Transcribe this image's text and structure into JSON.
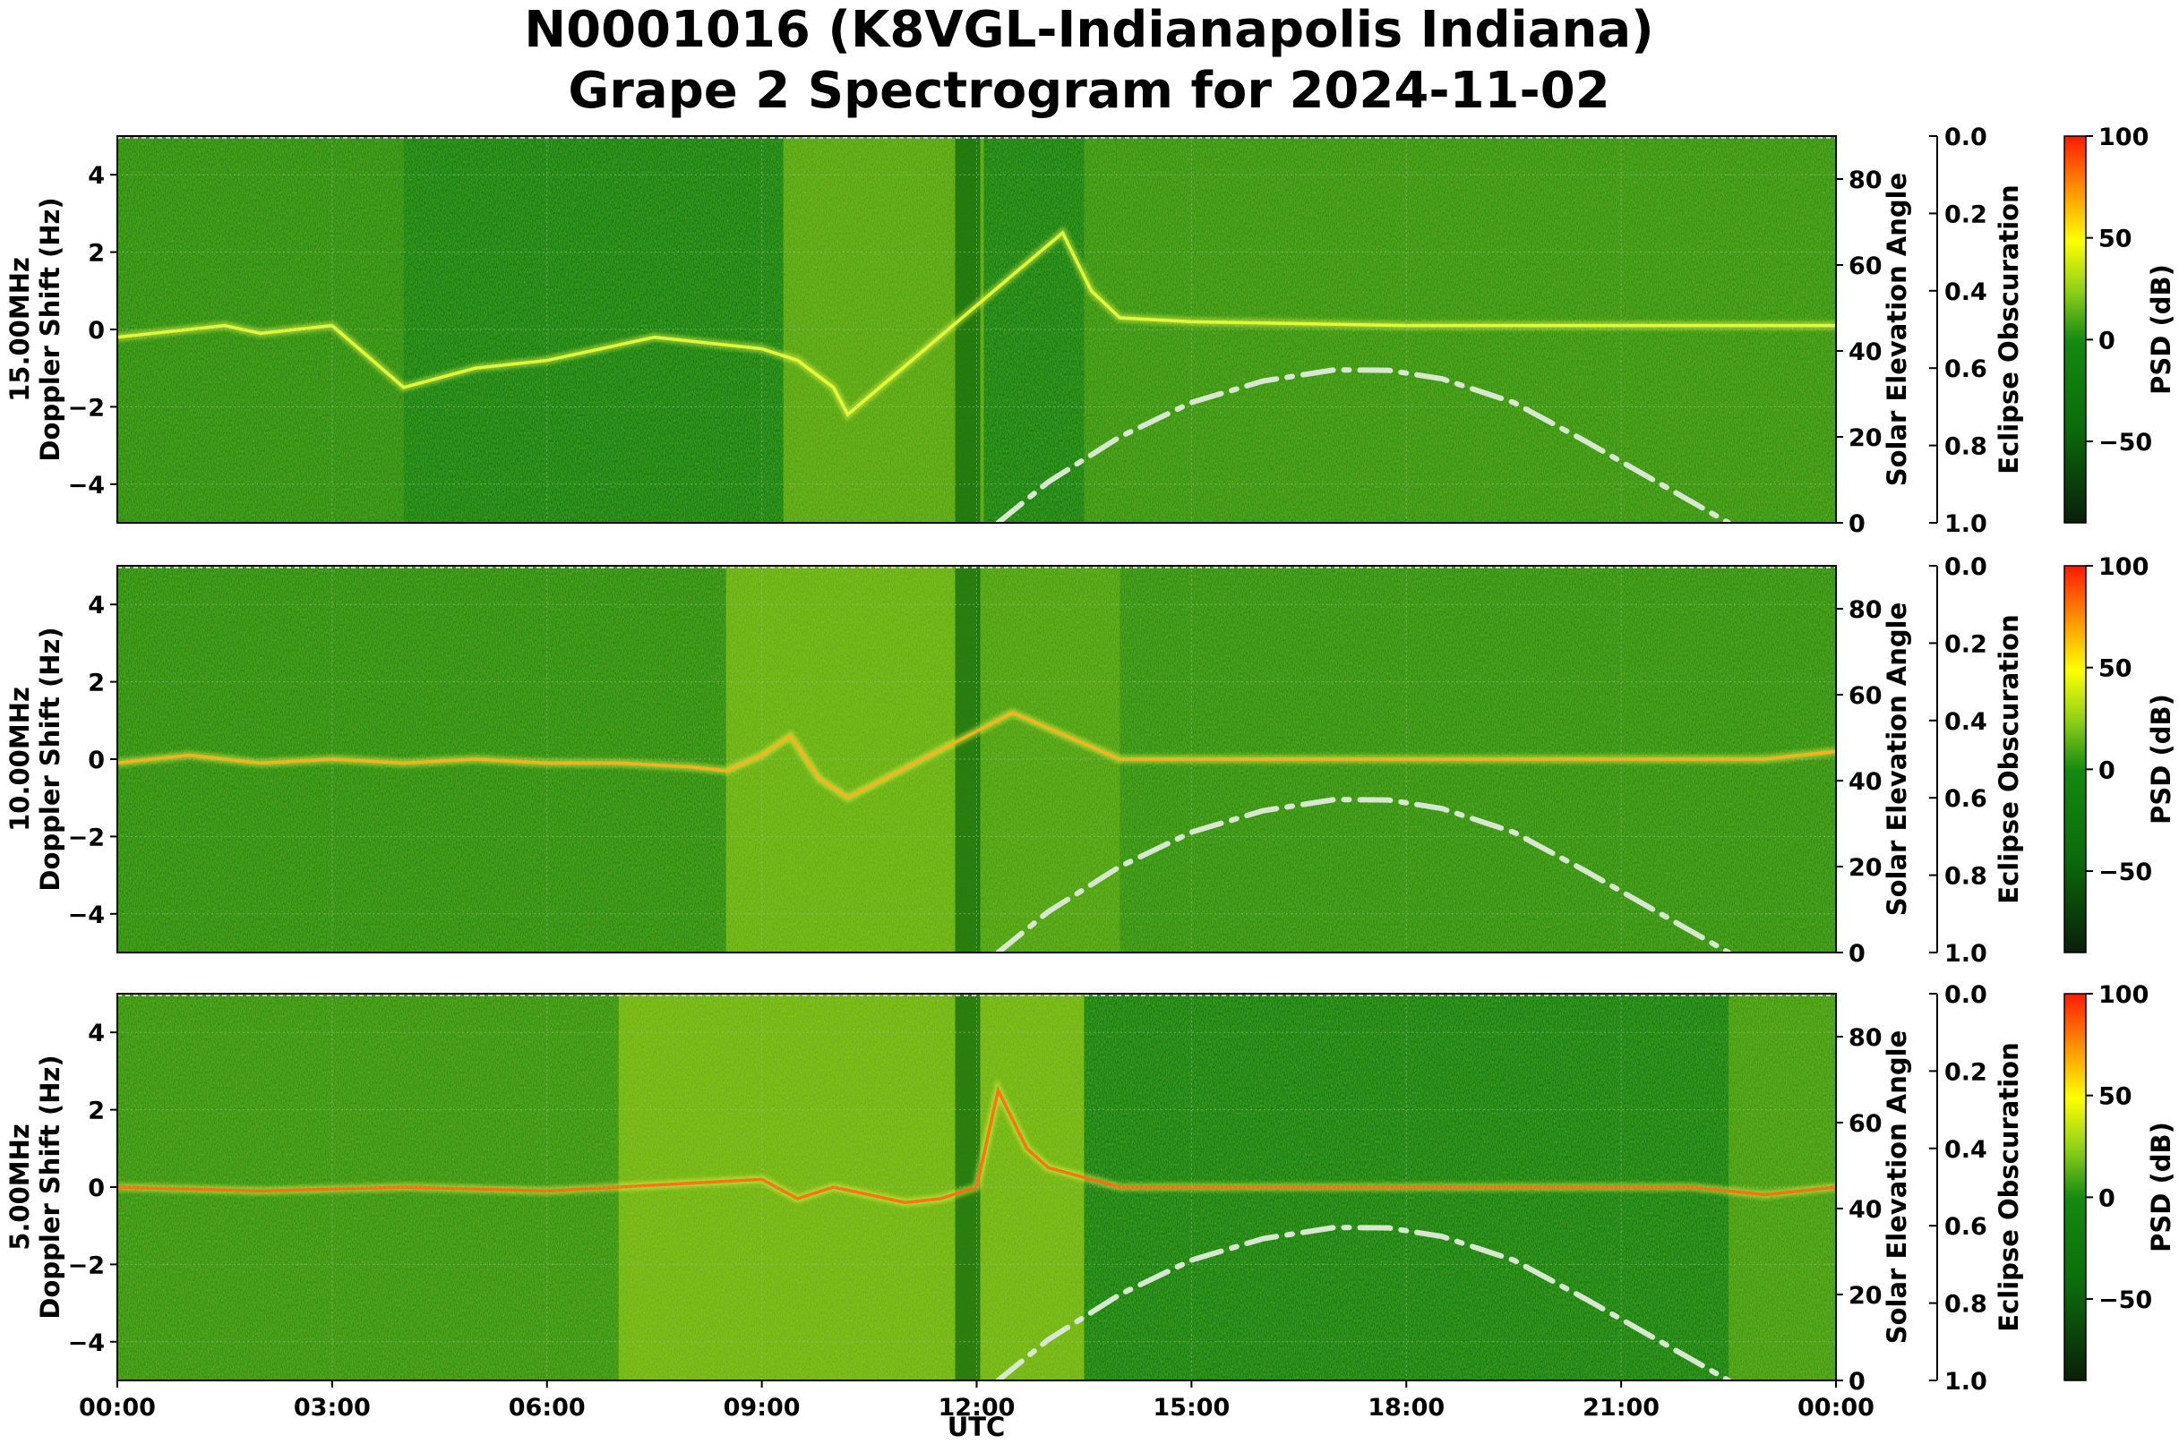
{
  "title_line1": "N0001016 (K8VGL-Indianapolis Indiana)",
  "title_line2": "Grape 2 Spectrogram for 2024-11-02",
  "chart_data": {
    "type": "heatmap",
    "xlabel": "UTC",
    "x_ticks": [
      "00:00",
      "03:00",
      "06:00",
      "09:00",
      "12:00",
      "15:00",
      "18:00",
      "21:00",
      "00:00"
    ],
    "xlim_hours": [
      0,
      24
    ],
    "ylim": [
      -5,
      5
    ],
    "y_ticks": [
      4,
      2,
      0,
      -2,
      -4
    ],
    "y2_label": "Solar Elevation Angle",
    "y2_ticks": [
      80,
      60,
      40,
      20,
      0
    ],
    "y2lim": [
      0,
      90
    ],
    "y3_label": "Eclipse Obscuration",
    "y3_ticks": [
      "0.0",
      "0.2",
      "0.4",
      "0.6",
      "0.8",
      "1.0"
    ],
    "colorbar_label": "PSD (dB)",
    "colorbar_ticks": [
      "100",
      "50",
      "0",
      "−50"
    ],
    "colorbar_range": [
      -90,
      100
    ],
    "colorbar_colors": [
      "#0a1f0a",
      "#0b6d0b",
      "#138a10",
      "#8fd01a",
      "#ffff00",
      "#ff8c00",
      "#ff1a00"
    ],
    "solar_elevation": {
      "style": "dash-dot",
      "color": "#d8e8d0",
      "hours": [
        12.3,
        13,
        14,
        15,
        16,
        17,
        17.75,
        18.5,
        19.5,
        20.5,
        21.5,
        22.5
      ],
      "degrees": [
        0,
        9.5,
        20,
        28,
        33,
        35.6,
        35.5,
        33.5,
        28,
        19,
        9.5,
        0
      ]
    },
    "panels": [
      {
        "name": "15.00MHz",
        "ylabel_line1": "15.00MHz",
        "ylabel_line2": "Doppler Shift (Hz)",
        "trace_hours": [
          0,
          0.5,
          1,
          1.5,
          2,
          2.5,
          3,
          4,
          5,
          6,
          7,
          7.5,
          8,
          9,
          9.5,
          10,
          10.2,
          13.2,
          13.6,
          14,
          15,
          18,
          21,
          24
        ],
        "trace_hz": [
          -0.2,
          -0.1,
          0.0,
          0.1,
          -0.1,
          0.0,
          0.1,
          -1.5,
          -1.0,
          -0.8,
          -0.4,
          -0.2,
          -0.3,
          -0.5,
          -0.8,
          -1.5,
          -2.2,
          2.5,
          1.0,
          0.3,
          0.2,
          0.1,
          0.1,
          0.1
        ]
      },
      {
        "name": "10.00MHz",
        "ylabel_line1": "10.00MHz",
        "ylabel_line2": "Doppler Shift (Hz)",
        "trace_hours": [
          0,
          1,
          2,
          3,
          4,
          5,
          6,
          7,
          8,
          8.5,
          9,
          9.4,
          9.8,
          10.2,
          12.5,
          13,
          14,
          18,
          22,
          23,
          24
        ],
        "trace_hz": [
          -0.1,
          0.1,
          -0.1,
          0.0,
          -0.1,
          0.0,
          -0.1,
          -0.1,
          -0.2,
          -0.3,
          0.1,
          0.6,
          -0.5,
          -1.0,
          1.2,
          0.8,
          0.0,
          0.0,
          0.0,
          0.0,
          0.2
        ]
      },
      {
        "name": "5.00MHz",
        "ylabel_line1": "5.00MHz",
        "ylabel_line2": "Doppler Shift (Hz)",
        "trace_hours": [
          0,
          2,
          4,
          6,
          8,
          9,
          9.5,
          10,
          10.5,
          11,
          11.5,
          12,
          12.3,
          12.7,
          13,
          14,
          18,
          22,
          23,
          24
        ],
        "trace_hz": [
          0.0,
          -0.1,
          0.0,
          -0.1,
          0.1,
          0.2,
          -0.3,
          0.0,
          -0.2,
          -0.4,
          -0.3,
          0.0,
          2.5,
          1.0,
          0.5,
          0.0,
          0.0,
          0.0,
          -0.2,
          0.0
        ]
      }
    ]
  }
}
